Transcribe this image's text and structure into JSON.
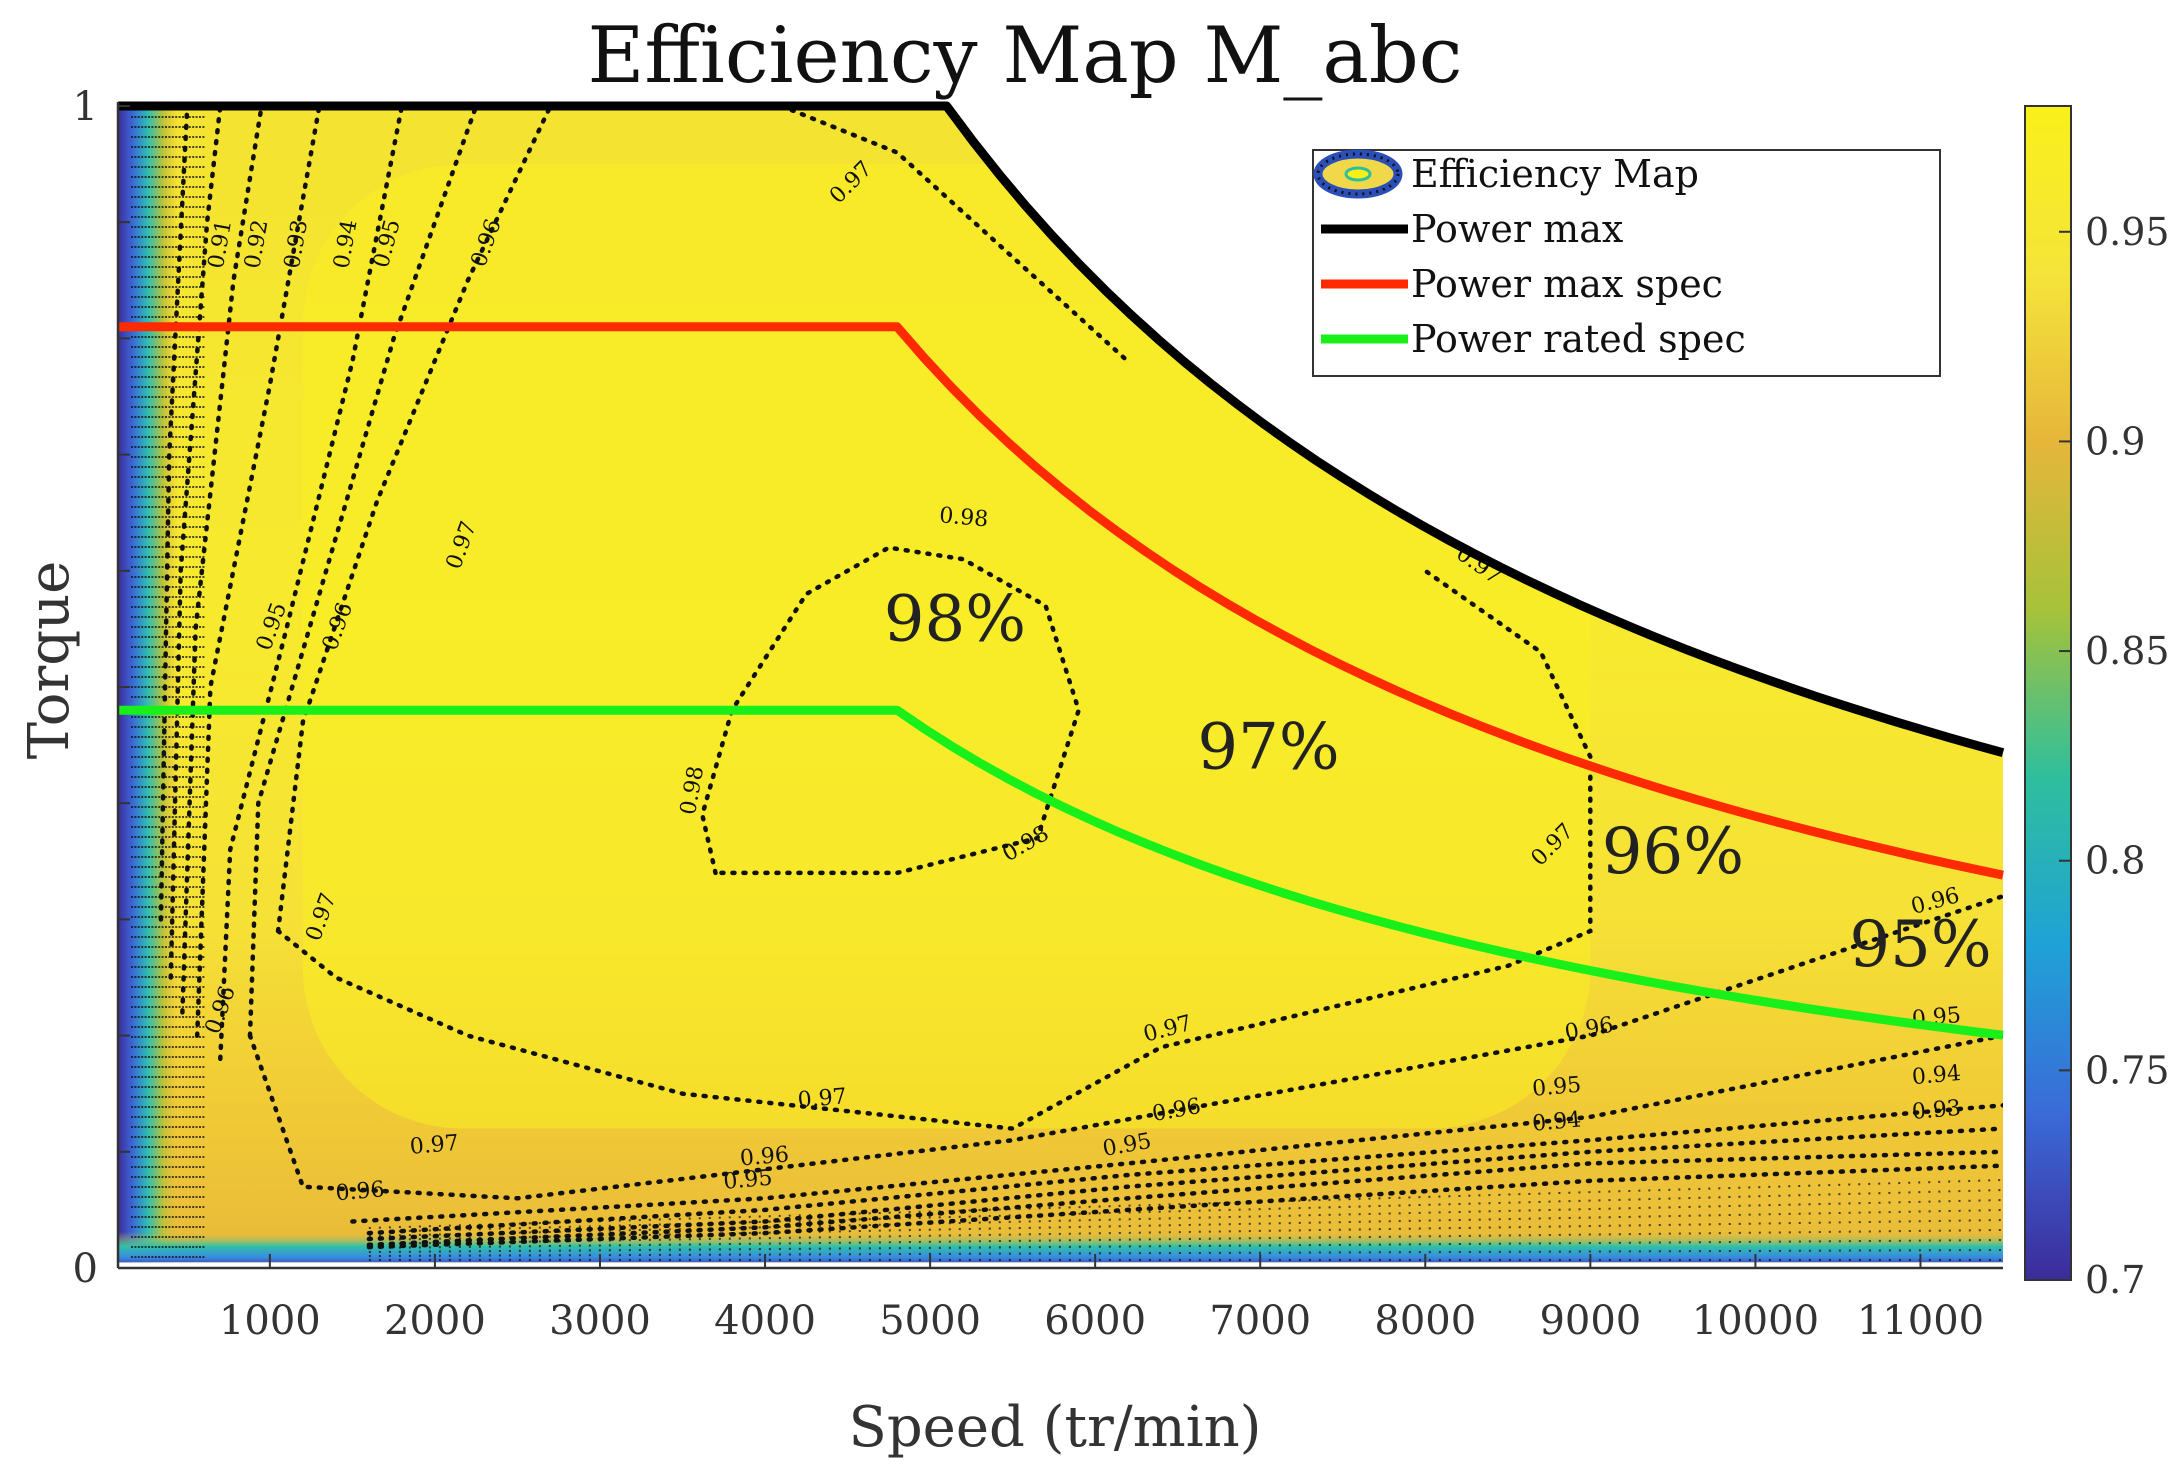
{
  "chart_data": {
    "type": "contour",
    "title": "Efficiency Map M_abc",
    "xlabel": "Speed (tr/min)",
    "ylabel": "Torque",
    "xlim": [
      80,
      11500
    ],
    "ylim": [
      0,
      1
    ],
    "x_ticks": [
      1000,
      2000,
      3000,
      4000,
      5000,
      6000,
      7000,
      8000,
      9000,
      10000,
      11000
    ],
    "x_tick_labels": [
      "1000",
      "2000",
      "3000",
      "4000",
      "5000",
      "6000",
      "7000",
      "8000",
      "9000",
      "10000",
      "11000"
    ],
    "y_ticks": [
      0,
      1
    ],
    "y_tick_labels": [
      "0",
      "1"
    ],
    "colorbar": {
      "range": [
        0.7,
        0.98
      ],
      "ticks": [
        0.7,
        0.75,
        0.8,
        0.85,
        0.9,
        0.95
      ],
      "tick_labels": [
        "0.7",
        "0.75",
        "0.8",
        "0.85",
        "0.9",
        "0.95"
      ],
      "colors": [
        "#3d2b9a",
        "#3a6bd8",
        "#1fa2d6",
        "#2fbf9c",
        "#a6c23a",
        "#e6b63a",
        "#f5e43a",
        "#f9f01a"
      ]
    },
    "legend": {
      "placement": "top-right",
      "entries": [
        {
          "label": "Efficiency Map",
          "color": "#2f6fd6",
          "style": "contour"
        },
        {
          "label": "Power max",
          "color": "#000000",
          "style": "line"
        },
        {
          "label": "Power max spec",
          "color": "#ff2a00",
          "style": "line"
        },
        {
          "label": "Power rated spec",
          "color": "#19f019",
          "style": "line"
        }
      ]
    },
    "series": [
      {
        "name": "Power max",
        "color": "#000000",
        "base_speed": 5100,
        "torque_limit": 1.0,
        "x_end": 11500
      },
      {
        "name": "Power max spec",
        "color": "#ff2a00",
        "base_speed": 4800,
        "torque_limit": 0.81,
        "x_end": 11500
      },
      {
        "name": "Power rated spec",
        "color": "#19f019",
        "base_speed": 4800,
        "torque_limit": 0.48,
        "x_end": 11500
      }
    ],
    "contours": [
      {
        "level": "0.98",
        "points": [
          [
            3700,
            0.34
          ],
          [
            3620,
            0.39
          ],
          [
            3800,
            0.48
          ],
          [
            4250,
            0.58
          ],
          [
            4750,
            0.62
          ],
          [
            5200,
            0.61
          ],
          [
            5700,
            0.57
          ],
          [
            5900,
            0.48
          ],
          [
            5650,
            0.37
          ],
          [
            4800,
            0.34
          ],
          [
            3700,
            0.34
          ]
        ]
      },
      {
        "level": "0.97",
        "points": [
          [
            1050,
            0.29
          ],
          [
            1200,
            0.47
          ],
          [
            1650,
            0.66
          ],
          [
            2200,
            0.85
          ],
          [
            2700,
            1.0
          ]
        ],
        "open": true
      },
      {
        "level": "0.97",
        "points": [
          [
            1050,
            0.29
          ],
          [
            1400,
            0.25
          ],
          [
            2200,
            0.2
          ],
          [
            3500,
            0.15
          ],
          [
            5500,
            0.12
          ],
          [
            6400,
            0.19
          ],
          [
            8500,
            0.26
          ],
          [
            9000,
            0.29
          ],
          [
            9000,
            0.44
          ],
          [
            8700,
            0.53
          ],
          [
            8000,
            0.6
          ]
        ],
        "open": true
      },
      {
        "level": "0.97",
        "points": [
          [
            4100,
            1.0
          ],
          [
            4800,
            0.96
          ],
          [
            5500,
            0.87
          ],
          [
            6200,
            0.78
          ]
        ],
        "open": true
      },
      {
        "level": "0.96",
        "points": [
          [
            880,
            0.2
          ],
          [
            930,
            0.4
          ],
          [
            1300,
            0.58
          ],
          [
            1750,
            0.8
          ],
          [
            2250,
            1.0
          ]
        ],
        "open": true
      },
      {
        "level": "0.96",
        "points": [
          [
            880,
            0.2
          ],
          [
            1200,
            0.07
          ],
          [
            2500,
            0.06
          ],
          [
            5500,
            0.11
          ],
          [
            9000,
            0.2
          ],
          [
            11500,
            0.32
          ]
        ],
        "open": true
      },
      {
        "level": "0.95",
        "points": [
          [
            700,
            0.18
          ],
          [
            760,
            0.36
          ],
          [
            1100,
            0.55
          ],
          [
            1500,
            0.78
          ],
          [
            1800,
            1.0
          ]
        ],
        "open": true
      },
      {
        "level": "0.95",
        "points": [
          [
            1500,
            0.04
          ],
          [
            4000,
            0.06
          ],
          [
            6200,
            0.09
          ],
          [
            9000,
            0.13
          ],
          [
            11500,
            0.2
          ]
        ],
        "open": true
      },
      {
        "level": "0.94",
        "points": [
          [
            560,
            0.2
          ],
          [
            640,
            0.5
          ],
          [
            1000,
            0.76
          ],
          [
            1300,
            1.0
          ]
        ],
        "open": true
      },
      {
        "level": "0.94",
        "points": [
          [
            1600,
            0.03
          ],
          [
            4000,
            0.05
          ],
          [
            6200,
            0.08
          ],
          [
            9000,
            0.11
          ],
          [
            11500,
            0.14
          ]
        ],
        "open": true
      },
      {
        "level": "0.93",
        "points": [
          [
            470,
            0.22
          ],
          [
            550,
            0.55
          ],
          [
            780,
            0.85
          ],
          [
            950,
            1.0
          ]
        ],
        "open": true
      },
      {
        "level": "0.93",
        "points": [
          [
            1600,
            0.025
          ],
          [
            4000,
            0.04
          ],
          [
            6200,
            0.07
          ],
          [
            9000,
            0.1
          ],
          [
            11500,
            0.12
          ]
        ],
        "open": true
      },
      {
        "level": "0.92",
        "points": [
          [
            400,
            0.25
          ],
          [
            460,
            0.6
          ],
          [
            620,
            0.9
          ],
          [
            700,
            1.0
          ]
        ],
        "open": true
      },
      {
        "level": "0.92",
        "points": [
          [
            1600,
            0.02
          ],
          [
            4000,
            0.035
          ],
          [
            6200,
            0.06
          ],
          [
            9000,
            0.09
          ],
          [
            11500,
            0.1
          ]
        ],
        "open": true
      },
      {
        "level": "0.91",
        "points": [
          [
            340,
            0.3
          ],
          [
            390,
            0.7
          ],
          [
            500,
            1.0
          ]
        ],
        "open": true
      },
      {
        "level": "0.91",
        "points": [
          [
            1600,
            0.018
          ],
          [
            4000,
            0.03
          ],
          [
            6200,
            0.05
          ],
          [
            9000,
            0.075
          ],
          [
            11500,
            0.088
          ]
        ],
        "open": true
      }
    ],
    "contour_labels": [
      {
        "text": "0.98",
        "x": 5200,
        "y": 0.64,
        "rot": 5
      },
      {
        "text": "0.98",
        "x": 3600,
        "y": 0.41,
        "rot": -80
      },
      {
        "text": "0.98",
        "x": 5600,
        "y": 0.36,
        "rot": -30
      },
      {
        "text": "0.97",
        "x": 4550,
        "y": 0.93,
        "rot": -45
      },
      {
        "text": "0.97",
        "x": 2200,
        "y": 0.62,
        "rot": -70
      },
      {
        "text": "0.97",
        "x": 1350,
        "y": 0.3,
        "rot": -70
      },
      {
        "text": "0.97",
        "x": 2000,
        "y": 0.1,
        "rot": -5
      },
      {
        "text": "0.97",
        "x": 4350,
        "y": 0.14,
        "rot": -5
      },
      {
        "text": "0.97",
        "x": 6450,
        "y": 0.2,
        "rot": -15
      },
      {
        "text": "0.97",
        "x": 8800,
        "y": 0.36,
        "rot": -45
      },
      {
        "text": "0.97",
        "x": 8300,
        "y": 0.6,
        "rot": 35
      },
      {
        "text": "0.96",
        "x": 2350,
        "y": 0.88,
        "rot": -70
      },
      {
        "text": "0.96",
        "x": 1450,
        "y": 0.55,
        "rot": -70
      },
      {
        "text": "0.96",
        "x": 740,
        "y": 0.22,
        "rot": -70
      },
      {
        "text": "0.96",
        "x": 1550,
        "y": 0.06,
        "rot": -5
      },
      {
        "text": "0.96",
        "x": 4000,
        "y": 0.09,
        "rot": -5
      },
      {
        "text": "0.96",
        "x": 6500,
        "y": 0.13,
        "rot": -10
      },
      {
        "text": "0.96",
        "x": 9000,
        "y": 0.2,
        "rot": -10
      },
      {
        "text": "0.96",
        "x": 11100,
        "y": 0.31,
        "rot": -15
      },
      {
        "text": "0.95",
        "x": 1750,
        "y": 0.88,
        "rot": -75
      },
      {
        "text": "0.95",
        "x": 1050,
        "y": 0.55,
        "rot": -70
      },
      {
        "text": "0.95",
        "x": 8800,
        "y": 0.15,
        "rot": -5
      },
      {
        "text": "0.95",
        "x": 11100,
        "y": 0.21,
        "rot": -5
      },
      {
        "text": "0.95",
        "x": 3900,
        "y": 0.07,
        "rot": -5
      },
      {
        "text": "0.95",
        "x": 6200,
        "y": 0.1,
        "rot": -10
      },
      {
        "text": "0.94",
        "x": 1500,
        "y": 0.88,
        "rot": -80
      },
      {
        "text": "0.94",
        "x": 8800,
        "y": 0.12,
        "rot": -5
      },
      {
        "text": "0.94",
        "x": 11100,
        "y": 0.16,
        "rot": -5
      },
      {
        "text": "0.93",
        "x": 1200,
        "y": 0.88,
        "rot": -80
      },
      {
        "text": "0.93",
        "x": 11100,
        "y": 0.13,
        "rot": -5
      },
      {
        "text": "0.92",
        "x": 960,
        "y": 0.88,
        "rot": -80
      },
      {
        "text": "0.91",
        "x": 740,
        "y": 0.88,
        "rot": -80
      }
    ],
    "region_labels": [
      {
        "text": "98%",
        "x": 5150,
        "y": 0.54
      },
      {
        "text": "97%",
        "x": 7050,
        "y": 0.43
      },
      {
        "text": "96%",
        "x": 9500,
        "y": 0.34
      },
      {
        "text": "95%",
        "x": 11000,
        "y": 0.26
      }
    ]
  }
}
